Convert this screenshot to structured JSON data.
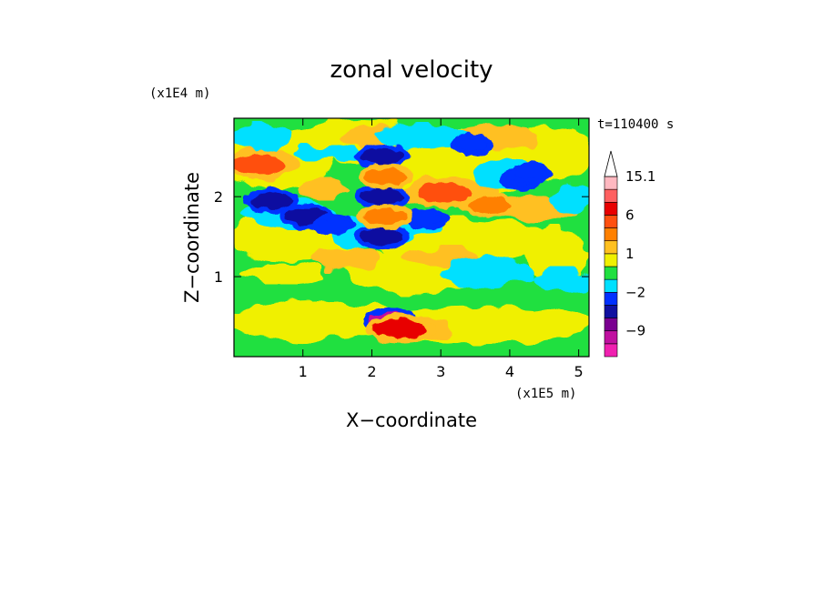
{
  "chart_data": {
    "type": "heatmap",
    "title": "zonal velocity",
    "xlabel": "X−coordinate",
    "ylabel": "Z−coordinate",
    "x_unit": "(x1E5 m)",
    "y_unit": "(x1E4 m)",
    "time_label": "t=110400 s",
    "xlim": [
      0,
      5.15
    ],
    "ylim": [
      0,
      2.98
    ],
    "x_ticks": [
      1,
      2,
      3,
      4,
      5
    ],
    "x_tick_labels": [
      "1",
      "2",
      "3",
      "4",
      "5"
    ],
    "y_ticks": [
      1,
      2
    ],
    "y_tick_labels": [
      "1",
      "2"
    ],
    "colorbar": {
      "levels": [
        -12,
        -9,
        -6,
        -4,
        -2,
        -1,
        0,
        1,
        2,
        4,
        6,
        9,
        12,
        15.1
      ],
      "labels": [
        {
          "value": 15.1,
          "text": "15.1"
        },
        {
          "value": 6,
          "text": "6"
        },
        {
          "value": 1,
          "text": "1"
        },
        {
          "value": -2,
          "text": "−2"
        },
        {
          "value": -9,
          "text": "−9"
        }
      ],
      "colors": [
        "#f020b0",
        "#c010a0",
        "#7a0090",
        "#1010a0",
        "#0030ff",
        "#00e0ff",
        "#20e040",
        "#f0f000",
        "#ffc020",
        "#ff8000",
        "#ff5010",
        "#e80000",
        "#ff6060",
        "#ffb8c0",
        "#ffffff"
      ]
    },
    "features": [
      {
        "kind": "negative_core",
        "x": 0.55,
        "z": 1.95,
        "value": -6
      },
      {
        "kind": "negative_core",
        "x": 1.05,
        "z": 1.75,
        "value": -6
      },
      {
        "kind": "negative_core",
        "x": 1.45,
        "z": 1.65,
        "value": -4
      },
      {
        "kind": "negative_core",
        "x": 2.15,
        "z": 1.5,
        "value": -6
      },
      {
        "kind": "negative_core",
        "x": 2.15,
        "z": 2.0,
        "value": -6
      },
      {
        "kind": "negative_core",
        "x": 2.15,
        "z": 2.5,
        "value": -6
      },
      {
        "kind": "negative_core",
        "x": 2.8,
        "z": 1.72,
        "value": -4
      },
      {
        "kind": "negative_core",
        "x": 3.45,
        "z": 2.65,
        "value": -4
      },
      {
        "kind": "negative_core",
        "x": 4.15,
        "z": 2.2,
        "value": -4
      },
      {
        "kind": "negative_core",
        "x": 4.3,
        "z": 2.3,
        "value": -4
      },
      {
        "kind": "negative_core",
        "x": 2.28,
        "z": 0.45,
        "value": -9
      },
      {
        "kind": "positive_core",
        "x": 0.35,
        "z": 2.4,
        "value": 6
      },
      {
        "kind": "positive_core",
        "x": 2.2,
        "z": 1.75,
        "value": 4
      },
      {
        "kind": "positive_core",
        "x": 2.2,
        "z": 2.25,
        "value": 4
      },
      {
        "kind": "positive_core",
        "x": 3.05,
        "z": 2.05,
        "value": 6
      },
      {
        "kind": "positive_core",
        "x": 3.7,
        "z": 1.9,
        "value": 4
      },
      {
        "kind": "positive_core",
        "x": 2.42,
        "z": 0.35,
        "value": 9
      }
    ]
  }
}
